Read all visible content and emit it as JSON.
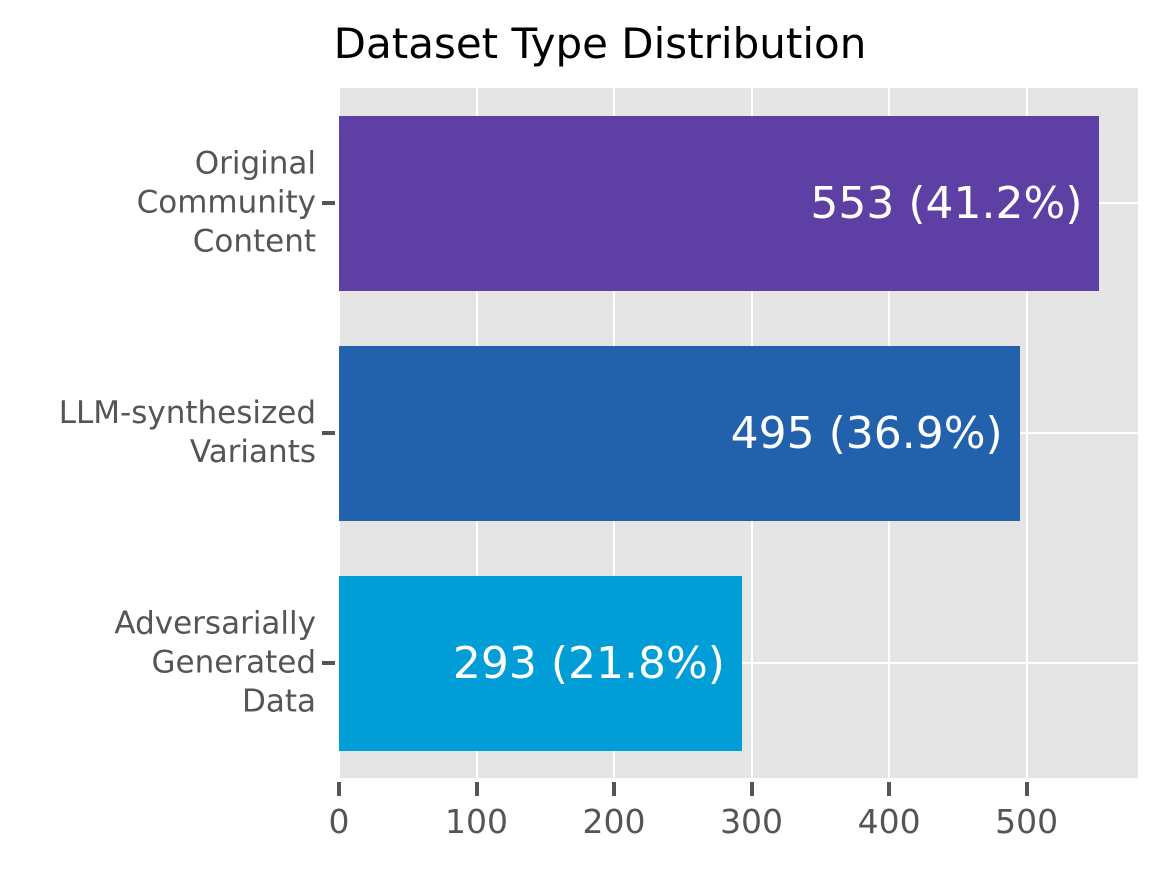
{
  "figure": {
    "title": "Dataset Type Distribution"
  },
  "colors": {
    "figure_bg": "#ffffff",
    "plot_bg": "#e5e5e5",
    "grid": "#ffffff",
    "tick_color": "#555555",
    "axis_label_color": "#555555",
    "title_color": "#000000",
    "value_label_color": "#ffffff"
  },
  "chart_data": {
    "type": "bar",
    "orientation": "horizontal",
    "title": "Dataset Type Distribution",
    "categories": [
      "Original Community Content",
      "LLM-synthesized Variants",
      "Adversarially Generated Data"
    ],
    "category_display_lines": [
      [
        "Original",
        "Community",
        "Content"
      ],
      [
        "LLM-synthesized",
        "Variants"
      ],
      [
        "Adversarially",
        "Generated",
        "Data"
      ]
    ],
    "values": [
      553,
      495,
      293
    ],
    "percentages": [
      41.2,
      36.9,
      21.8
    ],
    "value_labels": [
      "553 (41.2%)",
      "495 (36.9%)",
      "293 (21.8%)"
    ],
    "bar_colors": [
      "#5e40a5",
      "#2261ab",
      "#009dd6"
    ],
    "x_ticks": [
      "0",
      "100",
      "200",
      "300",
      "400",
      "500"
    ],
    "x_tick_values": [
      0,
      100,
      200,
      300,
      400,
      500
    ],
    "xlim": [
      0,
      581
    ],
    "xlabel": "",
    "ylabel": "",
    "grid": true,
    "legend": false,
    "plot_bg": "#e5e5e5"
  }
}
